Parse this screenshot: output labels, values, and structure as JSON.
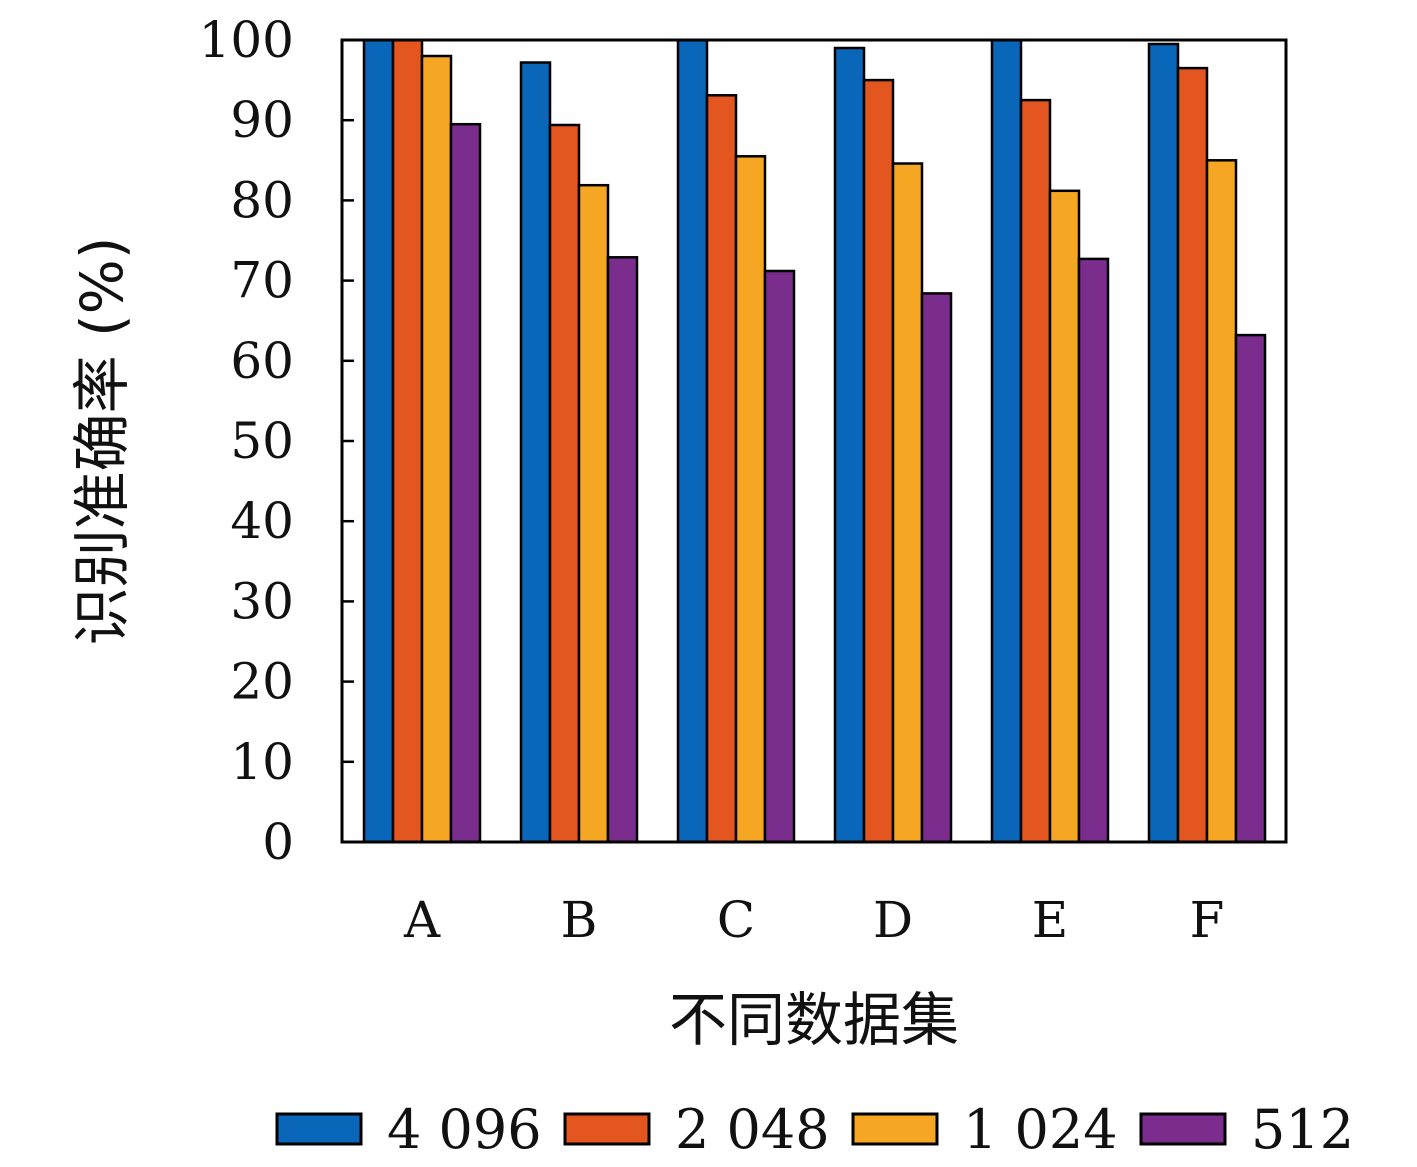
{
  "chart_data": {
    "type": "bar",
    "title": "",
    "xlabel": "不同数据集",
    "ylabel": "识别准确率 (%)",
    "ylim": [
      0,
      100
    ],
    "yticks": [
      0,
      10,
      20,
      30,
      40,
      50,
      60,
      70,
      80,
      90,
      100
    ],
    "categories": [
      "A",
      "B",
      "C",
      "D",
      "E",
      "F"
    ],
    "series": [
      {
        "name": "4 096",
        "color": "#0a66b8",
        "values": [
          100,
          97.2,
          100,
          99.0,
          100,
          99.5
        ]
      },
      {
        "name": "2 048",
        "color": "#e3561f",
        "values": [
          100,
          89.4,
          93.1,
          95.0,
          92.5,
          96.5
        ]
      },
      {
        "name": "1 024",
        "color": "#f5a623",
        "values": [
          98.0,
          81.9,
          85.5,
          84.6,
          81.2,
          85.0
        ]
      },
      {
        "name": "512",
        "color": "#7b2d8e",
        "values": [
          89.5,
          72.9,
          71.2,
          68.4,
          72.7,
          63.2
        ]
      }
    ],
    "grid": false,
    "legend_position": "bottom"
  }
}
